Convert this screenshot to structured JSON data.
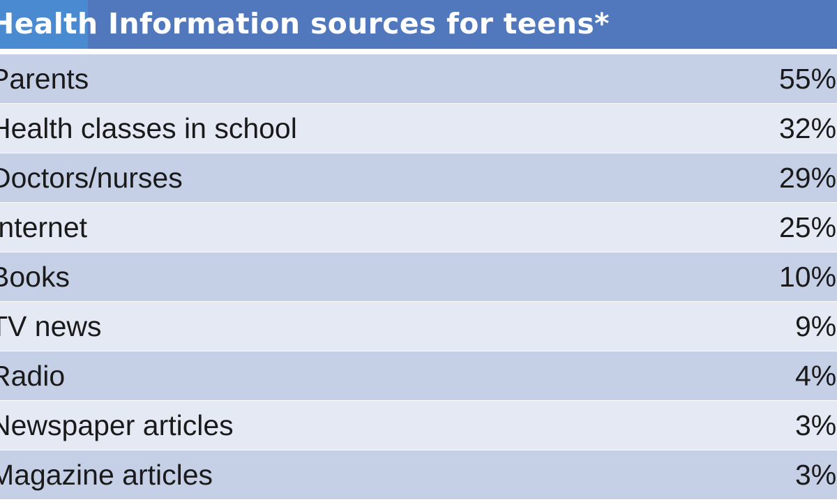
{
  "chart_data": {
    "type": "table",
    "title": "Health Information sources for teens*",
    "rows": [
      {
        "label": "Parents",
        "value": "55%"
      },
      {
        "label": "Health classes in school",
        "value": "32%"
      },
      {
        "label": "Doctors/nurses",
        "value": "29%"
      },
      {
        "label": "Internet",
        "value": "25%"
      },
      {
        "label": "Books",
        "value": "10%"
      },
      {
        "label": "TV news",
        "value": "9%"
      },
      {
        "label": "Radio",
        "value": "4%"
      },
      {
        "label": "Newspaper articles",
        "value": "3%"
      },
      {
        "label": "Magazine articles",
        "value": "3%"
      }
    ]
  },
  "colors": {
    "header": "#5177bd",
    "row_dark": "#c5cfe6",
    "row_light": "#e4e9f3"
  }
}
